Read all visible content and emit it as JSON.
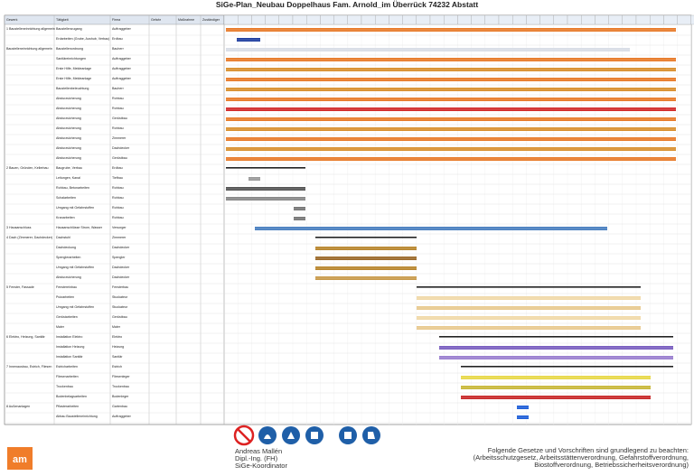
{
  "header": {
    "title": "SiGe-Plan_Neubau Doppelhaus Fam. Arnold_im Überrück 74232 Abstatt"
  },
  "table": {
    "columns": [
      "Gewerk",
      "Tätigkeit",
      "Firma",
      "Gefahr",
      "Maßnahme",
      "Zuständiger"
    ],
    "rows": [
      {
        "section": "1 Baustelleneinrichtung allgemein",
        "activity": "Baustellenzugang",
        "firm": "Auftraggeber"
      },
      {
        "activity": "Erdarbeiten (Grube, Aushub, Verbau)",
        "firm": "Erdbau"
      },
      {
        "section": "Baustelleneinrichtung allgemein",
        "activity": "Baustellenordnung",
        "firm": "Bauherr"
      },
      {
        "activity": "Sanitäreinrichtungen",
        "firm": "Auftraggeber"
      },
      {
        "activity": "Erste Hilfe, Meldeanlage",
        "firm": "Auftraggeber"
      },
      {
        "activity": "Erste Hilfe, Meldeanlage",
        "firm": "Auftraggeber"
      },
      {
        "activity": "Baustellenbeleuchtung",
        "firm": "Bauherr"
      },
      {
        "activity": "Absturzsicherung",
        "firm": "Rohbau"
      },
      {
        "activity": "Absturzsicherung",
        "firm": "Rohbau"
      },
      {
        "activity": "Absturzsicherung",
        "firm": "Gerüstbau"
      },
      {
        "activity": "Absturzsicherung",
        "firm": "Rohbau"
      },
      {
        "activity": "Absturzsicherung",
        "firm": "Zimmerer"
      },
      {
        "activity": "Absturzsicherung",
        "firm": "Dachdecker"
      },
      {
        "activity": "Absturzsicherung",
        "firm": "Gerüstbau"
      },
      {
        "section": "2 Bauen, Gründen, Kellerbau",
        "activity": "Baugrube, Verbau",
        "firm": "Erdbau"
      },
      {
        "activity": "Leitungen, Kanal",
        "firm": "Tiefbau"
      },
      {
        "activity": "Rohbau, Betonarbeiten",
        "firm": "Rohbau"
      },
      {
        "activity": "Schalarbeiten",
        "firm": "Rohbau"
      },
      {
        "activity": "Umgang mit Gefahrstoffen",
        "firm": "Rohbau"
      },
      {
        "activity": "Kranarbeiten",
        "firm": "Rohbau"
      },
      {
        "section": "3 Hausanschluss",
        "activity": "Hausanschlüsse Strom, Wasser",
        "firm": "Versorger"
      },
      {
        "section": "4 Dach (Zimmerer, Dachdecker)",
        "activity": "Dachstuhl",
        "firm": "Zimmerer"
      },
      {
        "activity": "Dachdeckung",
        "firm": "Dachdecker"
      },
      {
        "activity": "Spenglerarbeiten",
        "firm": "Spengler"
      },
      {
        "activity": "Umgang mit Gefahrstoffen",
        "firm": "Dachdecker"
      },
      {
        "activity": "Absturzsicherung",
        "firm": "Dachdecker"
      },
      {
        "section": "5 Fenster, Fassade",
        "activity": "Fenstereinbau",
        "firm": "Fensterbau"
      },
      {
        "activity": "Putzarbeiten",
        "firm": "Stuckateur"
      },
      {
        "activity": "Umgang mit Gefahrstoffen",
        "firm": "Stuckateur"
      },
      {
        "activity": "Gerüstarbeiten",
        "firm": "Gerüstbau"
      },
      {
        "activity": "Maler",
        "firm": "Maler"
      },
      {
        "section": "6 Elektro, Heizung, Sanitär",
        "activity": "Installation Elektro",
        "firm": "Elektro"
      },
      {
        "activity": "Installation Heizung",
        "firm": "Heizung"
      },
      {
        "activity": "Installation Sanitär",
        "firm": "Sanitär"
      },
      {
        "section": "7 Innenausbau, Estrich, Fliesen",
        "activity": "Estricharbeiten",
        "firm": "Estrich"
      },
      {
        "activity": "Fliesenarbeiten",
        "firm": "Fliesenleger"
      },
      {
        "activity": "Trockenbau",
        "firm": "Trockenbau"
      },
      {
        "activity": "Bodenbelagsarbeiten",
        "firm": "Bodenleger"
      },
      {
        "section": "8 Außenanlagen",
        "activity": "Pflasterarbeiten",
        "firm": "Gartenbau"
      },
      {
        "activity": "Abbau Baustelleneinrichtung",
        "firm": "Auftraggeber"
      }
    ]
  },
  "footer": {
    "name": "Andreas Mallén",
    "degree": "Dipl.-Ing. (FH)",
    "role": "SiGe-Koordinator",
    "note_title": "Folgende Gesetze und Vorschriften sind grundlegend zu beachten:",
    "note_line1": "(Arbeitsschutzgesetz, Arbeitsstättenverordnung, Gefahrstoffverordnung,",
    "note_line2": "Biostoffverordnung, Betriebssicherheitsverordnung)"
  }
}
